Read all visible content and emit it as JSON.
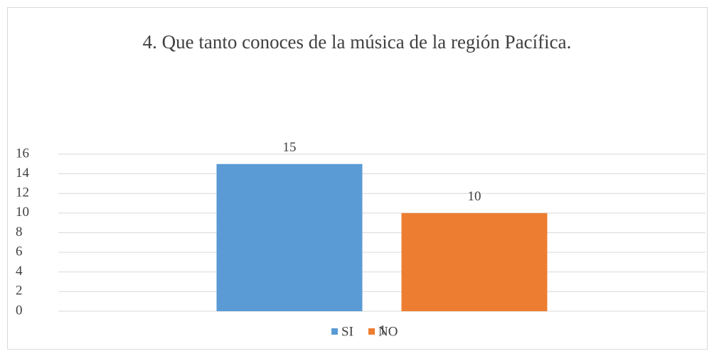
{
  "chart_data": {
    "type": "bar",
    "title": "4. Que tanto conoces de la música de la región Pacífica.",
    "categories": [
      "1"
    ],
    "series": [
      {
        "name": "SI",
        "color": "#5b9bd5",
        "values": [
          15
        ]
      },
      {
        "name": "NO",
        "color": "#ed7d31",
        "values": [
          10
        ]
      }
    ],
    "ylim": [
      0,
      16
    ],
    "yticks": [
      0,
      2,
      4,
      6,
      8,
      10,
      12,
      14,
      16
    ],
    "grid": true,
    "legend": "bottom"
  }
}
